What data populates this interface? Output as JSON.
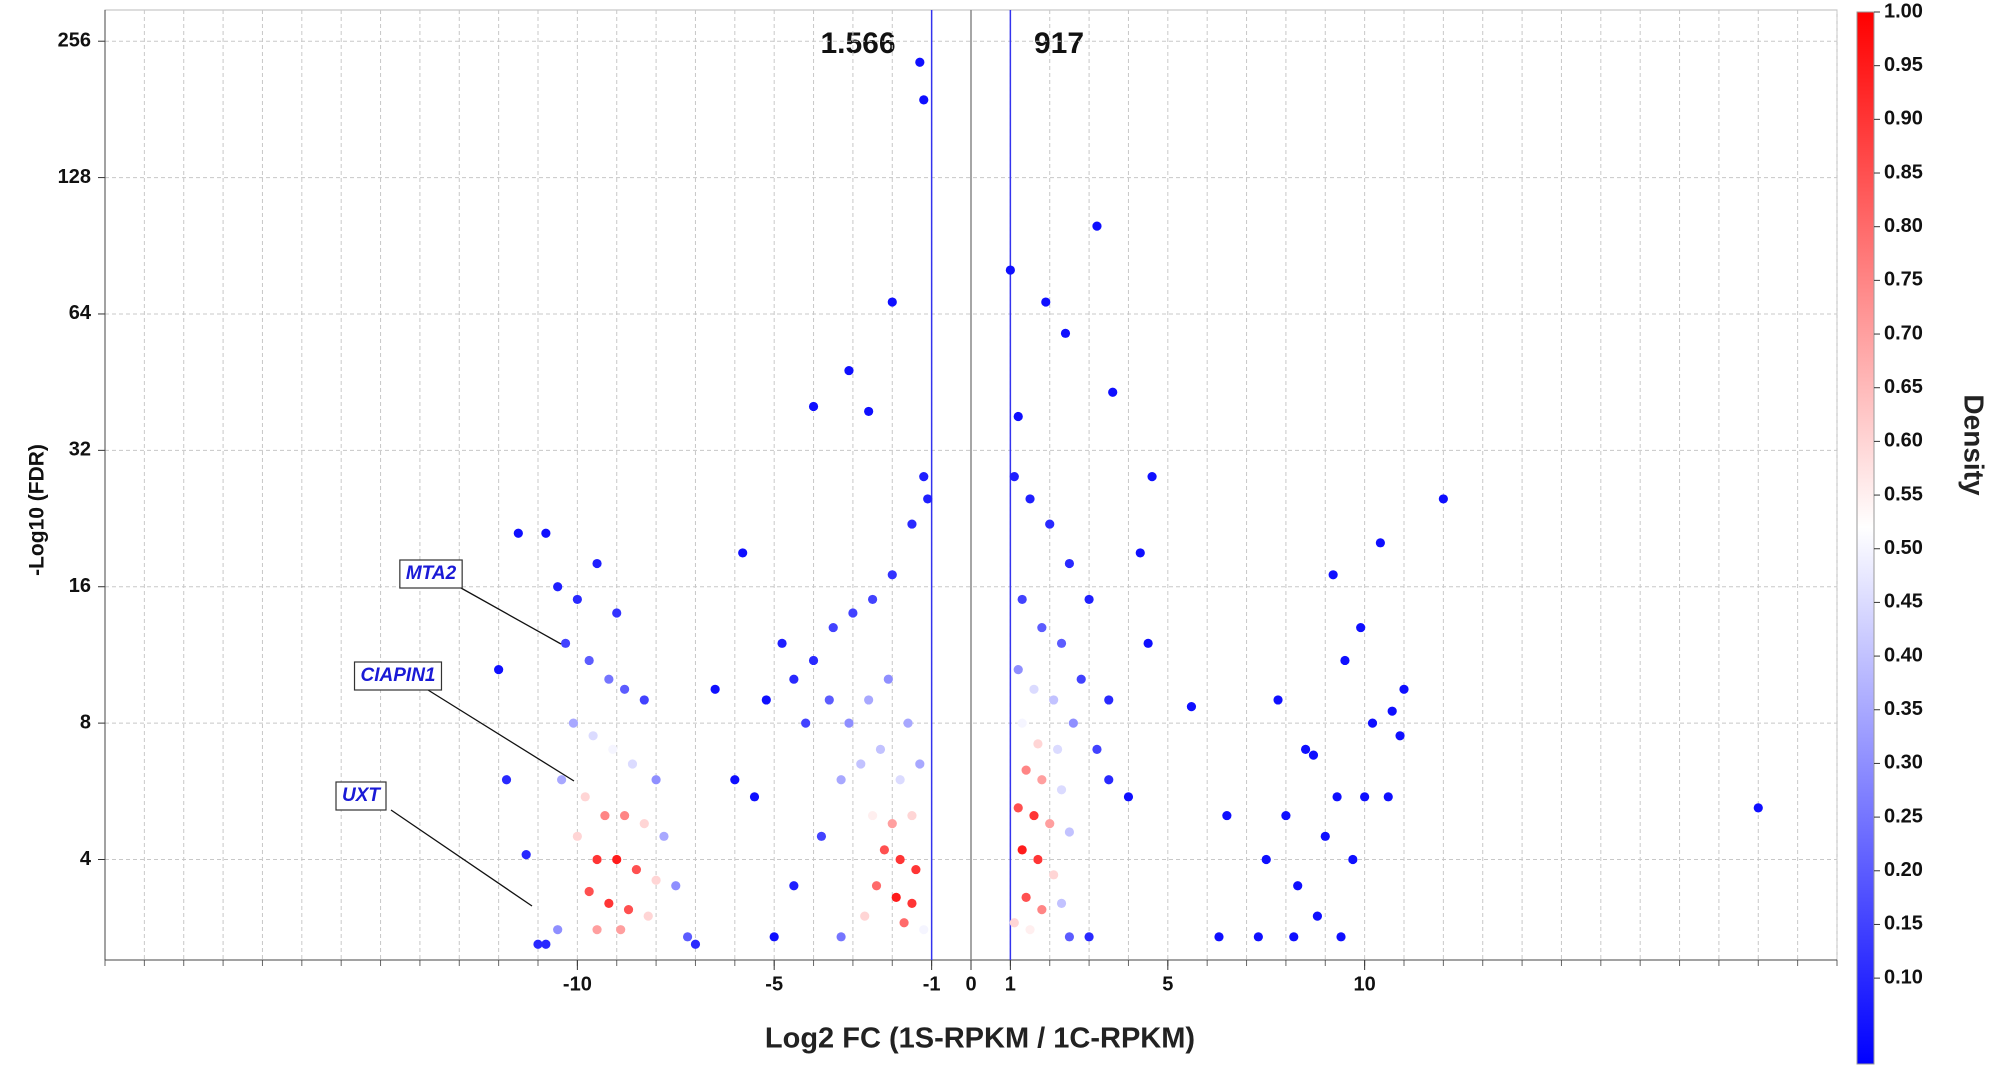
{
  "chart_data": {
    "type": "scatter",
    "x_label": "Log2 FC (1S-RPKM / 1C-RPKM)",
    "y_label": "-Log10 (FDR)",
    "xlim": [
      -22,
      22
    ],
    "xticks": [
      -10,
      -5,
      -1,
      0,
      1,
      5,
      10
    ],
    "ylim": [
      2.4,
      300
    ],
    "yticks": [
      4,
      8,
      16,
      32,
      64,
      128,
      256
    ],
    "y_log_base": 2,
    "grid": true,
    "thresholds": [
      -1,
      1
    ],
    "threshold_color": "#3333ee",
    "center_line": 0,
    "counts": [
      {
        "text": "1.566"
      },
      {
        "text": "917"
      }
    ],
    "annotations": [
      {
        "text": "MTA2"
      },
      {
        "text": "CIAPIN1"
      },
      {
        "text": "UXT"
      }
    ],
    "colorbar": {
      "title": "Density",
      "clim": [
        0.02,
        1.0
      ],
      "colorscale": [
        [
          0.02,
          "#0000ff"
        ],
        [
          0.52,
          "#ffffff"
        ],
        [
          1.0,
          "#ff0000"
        ]
      ],
      "ticks": [
        {
          "value": 0.1,
          "label": "0.10"
        },
        {
          "value": 0.15,
          "label": "0.15"
        },
        {
          "value": 0.2,
          "label": "0.20"
        },
        {
          "value": 0.25,
          "label": "0.25"
        },
        {
          "value": 0.3,
          "label": "0.30"
        },
        {
          "value": 0.35,
          "label": "0.35"
        },
        {
          "value": 0.4,
          "label": "0.40"
        },
        {
          "value": 0.45,
          "label": "0.45"
        },
        {
          "value": 0.5,
          "label": "0.50"
        },
        {
          "value": 0.55,
          "label": "0.55"
        },
        {
          "value": 0.6,
          "label": "0.60"
        },
        {
          "value": 0.65,
          "label": "0.65"
        },
        {
          "value": 0.7,
          "label": "0.70"
        },
        {
          "value": 0.75,
          "label": "0.75"
        },
        {
          "value": 0.8,
          "label": "0.80"
        },
        {
          "value": 0.85,
          "label": "0.85"
        },
        {
          "value": 0.9,
          "label": "0.90"
        },
        {
          "value": 0.95,
          "label": "0.95"
        },
        {
          "value": 1.0,
          "label": "1.00"
        }
      ]
    },
    "x": [
      -1.3,
      -1.2,
      -2,
      -3.1,
      -4,
      -2.6,
      3.2,
      1,
      1.9,
      2.4,
      3.6,
      1.2,
      12,
      20,
      -11.5,
      -10.8,
      -12,
      -6.5,
      -5.8,
      4.6,
      4.3,
      5.6,
      -10.5,
      -10,
      -9.5,
      -9,
      -10.3,
      -9.7,
      -9.2,
      -8.8,
      -8.3,
      -10.1,
      -9.6,
      -9.1,
      -8.6,
      -8,
      -10.4,
      -9.8,
      -9.3,
      -8.8,
      -8.3,
      -7.8,
      -10,
      -9.5,
      -9,
      -8.5,
      -8,
      -7.5,
      -9.7,
      -9.2,
      -8.7,
      -8.2,
      -10.5,
      -9.5,
      -8.9,
      -7.2,
      -11,
      -10.8,
      -7,
      -11.3,
      -11.8,
      -4.8,
      -4.5,
      -4,
      -3.5,
      -3,
      -2.5,
      -2,
      -1.5,
      -1.2,
      -1.1,
      -4.2,
      -3.6,
      -3.1,
      -2.6,
      -2.1,
      -1.6,
      -3.3,
      -2.8,
      -2.3,
      -1.8,
      -1.3,
      -2.5,
      -2,
      -1.5,
      -2.2,
      -1.8,
      -1.4,
      -2.4,
      -1.9,
      -1.5,
      -2.7,
      -1.7,
      -1.2,
      -3.3,
      -4.5,
      -5.5,
      -5,
      -6,
      -5.2,
      -3.8,
      1.1,
      1.5,
      2,
      2.5,
      3,
      1.3,
      1.8,
      2.3,
      2.8,
      1.2,
      1.6,
      2.1,
      2.6,
      3.2,
      1.3,
      1.7,
      2.2,
      1.4,
      1.8,
      2.3,
      1.2,
      1.6,
      2,
      2.5,
      1.3,
      1.7,
      2.1,
      1.4,
      1.8,
      2.3,
      1.1,
      1.5,
      2.5,
      3,
      3.5,
      4,
      4.5,
      3.5,
      6.3,
      6.5,
      7.3,
      7.5,
      7.8,
      8,
      8.3,
      8.5,
      8.7,
      8.8,
      9,
      9.2,
      9.3,
      9.5,
      9.7,
      9.9,
      10,
      10.2,
      10.4,
      10.6,
      10.7,
      10.9,
      11,
      8.2,
      9.4
    ],
    "y": [
      230,
      190,
      68,
      48,
      40,
      39,
      100,
      80,
      68,
      58,
      43,
      38,
      25,
      5.2,
      21,
      21,
      10.5,
      9.5,
      19,
      28,
      19,
      8.7,
      16,
      15,
      18,
      14,
      12,
      11,
      10,
      9.5,
      9,
      8,
      7.5,
      7,
      6.5,
      6,
      6,
      5.5,
      5,
      5,
      4.8,
      4.5,
      4.5,
      4,
      4,
      3.8,
      3.6,
      3.5,
      3.4,
      3.2,
      3.1,
      3,
      2.8,
      2.8,
      2.8,
      2.7,
      2.6,
      2.6,
      2.6,
      4.1,
      6,
      12,
      10,
      11,
      13,
      14,
      15,
      17,
      22,
      28,
      25,
      8,
      9,
      8,
      9,
      10,
      8,
      6,
      6.5,
      7,
      6,
      6.5,
      5,
      4.8,
      5,
      4.2,
      4,
      3.8,
      3.5,
      3.3,
      3.2,
      3,
      2.9,
      2.8,
      2.7,
      3.5,
      5.5,
      2.7,
      6,
      9,
      4.5,
      28,
      25,
      22,
      18,
      15,
      15,
      13,
      12,
      10,
      10.5,
      9.5,
      9,
      8,
      7,
      8,
      7.2,
      7,
      6.3,
      6,
      5.7,
      5.2,
      5,
      4.8,
      4.6,
      4.2,
      4,
      3.7,
      3.3,
      3.1,
      3.2,
      2.9,
      2.8,
      2.7,
      2.7,
      6,
      5.5,
      12,
      9,
      2.7,
      5,
      2.7,
      4,
      9,
      5,
      3.5,
      7,
      6.8,
      3,
      4.5,
      17,
      5.5,
      11,
      4,
      13,
      5.5,
      8,
      20,
      5.5,
      8.5,
      7.5,
      9.5,
      2.7,
      2.7
    ],
    "density": [
      0.05,
      0.05,
      0.05,
      0.05,
      0.05,
      0.05,
      0.05,
      0.05,
      0.05,
      0.05,
      0.05,
      0.05,
      0.05,
      0.05,
      0.05,
      0.05,
      0.05,
      0.05,
      0.05,
      0.05,
      0.05,
      0.05,
      0.08,
      0.1,
      0.08,
      0.12,
      0.15,
      0.2,
      0.25,
      0.2,
      0.15,
      0.35,
      0.45,
      0.5,
      0.45,
      0.3,
      0.35,
      0.6,
      0.75,
      0.75,
      0.6,
      0.35,
      0.6,
      0.9,
      0.95,
      0.85,
      0.6,
      0.3,
      0.85,
      0.9,
      0.85,
      0.6,
      0.3,
      0.7,
      0.7,
      0.2,
      0.1,
      0.1,
      0.1,
      0.1,
      0.1,
      0.08,
      0.1,
      0.1,
      0.15,
      0.15,
      0.15,
      0.12,
      0.1,
      0.08,
      0.08,
      0.15,
      0.2,
      0.3,
      0.35,
      0.3,
      0.35,
      0.35,
      0.4,
      0.4,
      0.45,
      0.35,
      0.55,
      0.7,
      0.6,
      0.85,
      0.9,
      0.9,
      0.8,
      0.95,
      0.9,
      0.6,
      0.8,
      0.5,
      0.25,
      0.08,
      0.05,
      0.05,
      0.05,
      0.05,
      0.15,
      0.08,
      0.08,
      0.1,
      0.1,
      0.08,
      0.15,
      0.2,
      0.2,
      0.15,
      0.3,
      0.45,
      0.4,
      0.3,
      0.15,
      0.5,
      0.6,
      0.45,
      0.75,
      0.7,
      0.45,
      0.85,
      0.9,
      0.7,
      0.4,
      0.95,
      0.9,
      0.6,
      0.85,
      0.75,
      0.4,
      0.6,
      0.55,
      0.2,
      0.1,
      0.1,
      0.05,
      0.05,
      0.1,
      0.05,
      0.05,
      0.05,
      0.05,
      0.05,
      0.05,
      0.05,
      0.05,
      0.05,
      0.05,
      0.05,
      0.05,
      0.05,
      0.05,
      0.05,
      0.05,
      0.05,
      0.05,
      0.05,
      0.05,
      0.05,
      0.05,
      0.05,
      0.05,
      0.05
    ]
  }
}
